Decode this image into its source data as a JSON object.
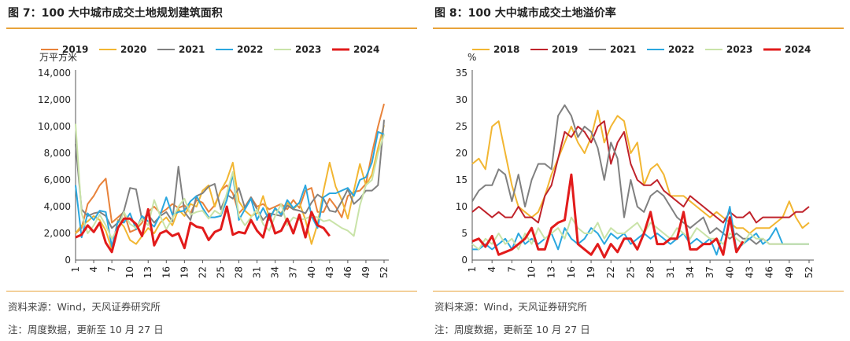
{
  "colors": {
    "accent_rule": "#e8a33a",
    "2018": "#f2b632",
    "2019": "#e8823a",
    "2019_right": "#c0232b",
    "2020": "#f2b632",
    "2021": "#808080",
    "2022": "#2aa7df",
    "2023": "#c9e3a8",
    "2024": "#e21b1b"
  },
  "left": {
    "title": "图 7：100 大中城市成交土地规划建筑面积",
    "source": "资料来源：Wind，天风证券研究所",
    "note": "注：周度数据，更新至 10 月 27 日"
  },
  "right": {
    "title": "图 8：100 大中城市成交土地溢价率",
    "source": "资料来源：Wind，天风证券研究所",
    "note": "注：周度数据，更新至 10 月 27 日"
  },
  "chart_data": [
    {
      "type": "line",
      "title": "图 7：100 大中城市成交土地规划建筑面积",
      "ylabel": "万平方米",
      "ylim": [
        0,
        14000
      ],
      "yticks": [
        0,
        2000,
        4000,
        6000,
        8000,
        10000,
        12000,
        14000
      ],
      "ytick_labels": [
        "0",
        "2,000",
        "4,000",
        "6,000",
        "8,000",
        "10,000",
        "12,000",
        "14,000"
      ],
      "xlim": [
        1,
        52
      ],
      "xticks": [
        1,
        4,
        7,
        10,
        13,
        16,
        19,
        22,
        25,
        28,
        31,
        34,
        37,
        40,
        43,
        46,
        49,
        52
      ],
      "legend": "top",
      "series": [
        {
          "name": "2019",
          "color_key": "2019",
          "width": 2,
          "values": [
            2000,
            2400,
            4200,
            4800,
            5600,
            6100,
            2800,
            3200,
            3600,
            2100,
            2300,
            2800,
            3600,
            4000,
            3500,
            3800,
            4200,
            3900,
            4100,
            3500,
            4500,
            4300,
            3600,
            4100,
            5200,
            5600,
            5000,
            3500,
            4000,
            4700,
            4000,
            4200,
            3800,
            4000,
            4200,
            3800,
            4500,
            3900,
            5200,
            5400,
            3600,
            3600,
            4600,
            4000,
            3200,
            4800,
            5100,
            5200,
            5700,
            8000,
            10000,
            11700
          ]
        },
        {
          "name": "2020",
          "color_key": "2020",
          "width": 2,
          "values": [
            2000,
            2600,
            2900,
            3300,
            3000,
            2200,
            800,
            3000,
            2500,
            1500,
            1200,
            1800,
            2400,
            2000,
            2800,
            3200,
            2600,
            3800,
            3300,
            4200,
            4000,
            5200,
            5600,
            4000,
            5200,
            6000,
            7300,
            4400,
            3700,
            3300,
            3500,
            4800,
            3200,
            3800,
            3500,
            4300,
            3800,
            4300,
            3000,
            1200,
            2700,
            5200,
            7300,
            5500,
            4500,
            3100,
            5200,
            7200,
            5600,
            6400,
            8400,
            10100
          ]
        },
        {
          "name": "2021",
          "color_key": "2021",
          "width": 2,
          "values": [
            8700,
            3800,
            3300,
            3500,
            3600,
            3300,
            2400,
            2800,
            3700,
            5400,
            5300,
            3000,
            3400,
            2800,
            3300,
            3600,
            2900,
            7000,
            3600,
            3000,
            4800,
            5000,
            5500,
            5700,
            3800,
            4900,
            4600,
            5400,
            3900,
            4700,
            3800,
            3000,
            3500,
            3400,
            3300,
            4100,
            3800,
            3700,
            3500,
            4300,
            4900,
            4600,
            3700,
            3600,
            4400,
            5300,
            4200,
            4600,
            5200,
            5200,
            5600,
            10500
          ]
        },
        {
          "name": "2022",
          "color_key": "2022",
          "width": 2,
          "values": [
            5600,
            1700,
            3500,
            3000,
            3700,
            3600,
            1000,
            2900,
            2800,
            3500,
            2300,
            3300,
            2900,
            2500,
            3400,
            4700,
            3400,
            3600,
            3700,
            4400,
            4800,
            3900,
            3200,
            3200,
            3300,
            4500,
            6400,
            3000,
            3800,
            4600,
            3000,
            3900,
            3000,
            3900,
            3400,
            4500,
            3900,
            4300,
            5600,
            3300,
            2400,
            4700,
            5000,
            5000,
            5200,
            5400,
            4800,
            6000,
            6200,
            7300,
            9600,
            9400
          ]
        },
        {
          "name": "2023",
          "color_key": "2023",
          "width": 2,
          "values": [
            10200,
            3500,
            2000,
            2600,
            3400,
            2600,
            1600,
            2400,
            3600,
            2700,
            2400,
            3100,
            2600,
            4500,
            3300,
            2300,
            3100,
            4000,
            4600,
            3400,
            3600,
            3700,
            3100,
            3700,
            3400,
            5000,
            6600,
            3300,
            2600,
            3200,
            3800,
            2700,
            2200,
            3300,
            4200,
            2600,
            3200,
            3000,
            3100,
            3300,
            3200,
            2900,
            3000,
            2700,
            2400,
            2200,
            1800,
            4100,
            5600,
            6000,
            8000,
            9400
          ]
        },
        {
          "name": "2024",
          "color_key": "2024",
          "width": 3,
          "values": [
            1700,
            1900,
            2600,
            2100,
            2800,
            1300,
            600,
            2400,
            3100,
            3100,
            2700,
            1800,
            3800,
            1100,
            2000,
            2200,
            1800,
            2000,
            900,
            2800,
            2500,
            2400,
            1500,
            2100,
            2300,
            4000,
            1900,
            2100,
            2000,
            3000,
            2200,
            1700,
            3400,
            2000,
            2200,
            3100,
            2000,
            3400,
            1700,
            3600,
            2600,
            2400,
            1800
          ]
        }
      ]
    },
    {
      "type": "line",
      "title": "图 8：100 大中城市成交土地溢价率",
      "ylabel": "%",
      "ylim": [
        0,
        35
      ],
      "yticks": [
        0,
        5,
        10,
        15,
        20,
        25,
        30,
        35
      ],
      "ytick_labels": [
        "0",
        "5",
        "10",
        "15",
        "20",
        "25",
        "30",
        "35"
      ],
      "xlim": [
        1,
        52
      ],
      "xticks": [
        1,
        4,
        7,
        10,
        13,
        16,
        19,
        22,
        25,
        28,
        31,
        34,
        37,
        40,
        43,
        46,
        49,
        52
      ],
      "legend": "top",
      "series": [
        {
          "name": "2018",
          "color_key": "2018",
          "width": 2,
          "values": [
            18,
            19,
            17,
            25,
            26,
            20,
            14,
            10,
            9,
            8,
            9,
            12,
            16,
            19,
            22,
            25,
            22,
            20,
            23,
            28,
            22,
            25,
            27,
            26,
            20,
            22,
            14,
            17,
            18,
            16,
            12,
            12,
            12,
            11,
            10,
            9,
            8,
            9,
            8,
            7,
            6,
            6,
            5,
            6,
            6,
            6,
            7,
            8,
            11,
            8,
            6,
            7
          ]
        },
        {
          "name": "2019",
          "color_key": "2019_right",
          "width": 2,
          "values": [
            9,
            10,
            9,
            8,
            9,
            8,
            8,
            10,
            8,
            8,
            7,
            12,
            14,
            19,
            24,
            23,
            25,
            24,
            22,
            25,
            26,
            18,
            22,
            24,
            18,
            15,
            14,
            14,
            15,
            13,
            12,
            11,
            10,
            12,
            11,
            10,
            9,
            8,
            7,
            9,
            8,
            8,
            9,
            7,
            8,
            8,
            8,
            8,
            8,
            9,
            9,
            10
          ]
        },
        {
          "name": "2021",
          "color_key": "2021",
          "width": 2,
          "values": [
            11,
            13,
            14,
            14,
            17,
            16,
            11,
            16,
            10,
            15,
            18,
            18,
            17,
            27,
            29,
            27,
            23,
            25,
            24,
            21,
            15,
            22,
            19,
            8,
            15,
            10,
            9,
            12,
            13,
            12,
            10,
            8,
            7,
            6,
            7,
            8,
            5,
            6,
            5,
            4,
            5,
            4,
            4,
            3,
            4,
            3,
            3,
            3,
            3,
            3,
            3,
            3
          ]
        },
        {
          "name": "2022",
          "color_key": "2022",
          "width": 2,
          "values": [
            2,
            2,
            3,
            2,
            3,
            4,
            2,
            5,
            3,
            4,
            3,
            4,
            5,
            2,
            6,
            4,
            3,
            4,
            6,
            5,
            3,
            5,
            4,
            5,
            3,
            4,
            5,
            4,
            5,
            4,
            3,
            4,
            5,
            3,
            4,
            3,
            4,
            1,
            5,
            10,
            2,
            3,
            4,
            5,
            3,
            4,
            6,
            3,
            3,
            3,
            3,
            3
          ]
        },
        {
          "name": "2023",
          "color_key": "2023",
          "width": 2,
          "values": [
            3,
            2,
            4,
            3,
            5,
            3,
            4,
            2,
            5,
            3,
            6,
            4,
            5,
            6,
            4,
            8,
            6,
            5,
            5,
            7,
            4,
            6,
            5,
            5,
            6,
            7,
            5,
            7,
            6,
            5,
            4,
            6,
            5,
            4,
            6,
            5,
            4,
            4,
            3,
            5,
            4,
            3,
            5,
            4,
            4,
            3,
            3,
            3,
            3,
            3,
            3,
            3
          ]
        },
        {
          "name": "2024",
          "color_key": "2024",
          "width": 3,
          "values": [
            3.5,
            4,
            2.5,
            4.5,
            1,
            1.5,
            2,
            3,
            4,
            6,
            2,
            2,
            6,
            7,
            7.5,
            16,
            3,
            2,
            1,
            3,
            0.5,
            3,
            1.5,
            4,
            4,
            2,
            5,
            9,
            3,
            3,
            4,
            4,
            9,
            2,
            2,
            3,
            3,
            4,
            1,
            8,
            1.5,
            3.5
          ]
        }
      ]
    }
  ]
}
